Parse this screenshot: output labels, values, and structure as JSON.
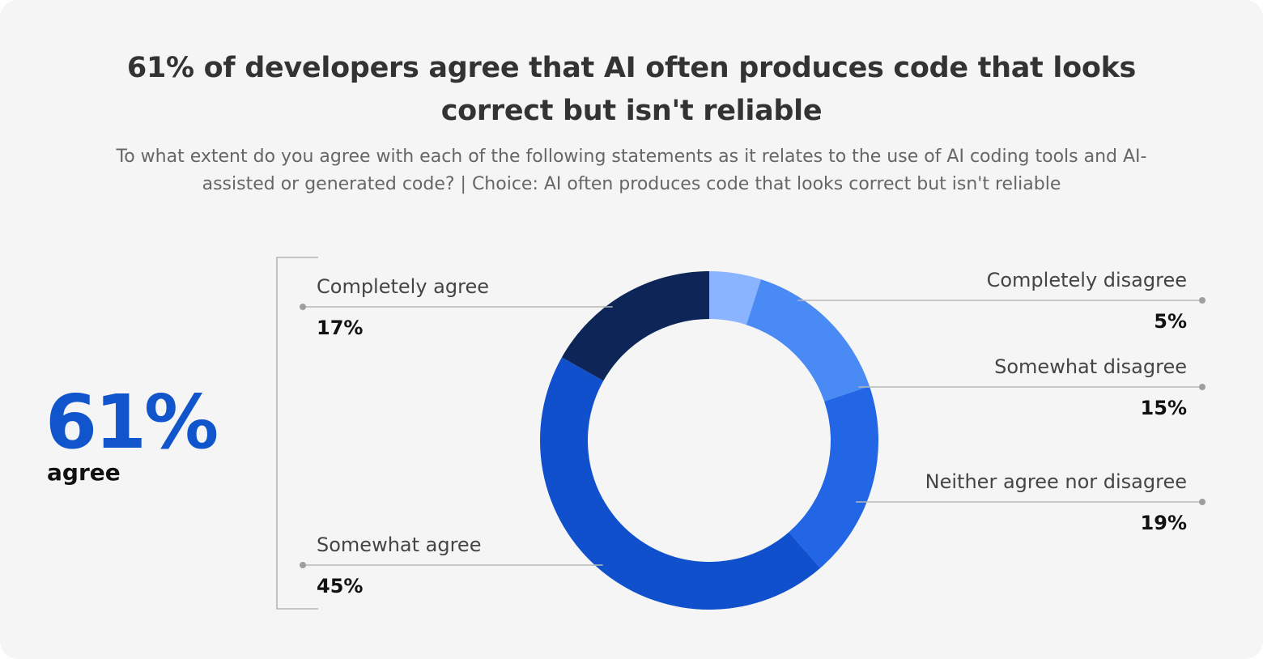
{
  "title": "61% of developers agree that AI often produces code that looks correct but isn't reliable",
  "subtitle": "To what extent do you agree with each of the following statements as it relates to the use of AI coding tools and AI-assisted or generated code? | Choice: AI often produces code that looks correct but isn't reliable",
  "summary": {
    "value": "61%",
    "label": "agree"
  },
  "chart_data": {
    "type": "pie",
    "style": "donut",
    "start": "top, clockwise",
    "categories": [
      "Completely disagree",
      "Somewhat disagree",
      "Neither agree nor disagree",
      "Somewhat agree",
      "Completely agree"
    ],
    "values": [
      5,
      15,
      19,
      45,
      17
    ],
    "value_labels": [
      "5%",
      "15%",
      "19%",
      "45%",
      "17%"
    ],
    "colors": [
      "#8ab4ff",
      "#4a8af4",
      "#2266e6",
      "#1150cc",
      "#0d2557"
    ],
    "label_sides": [
      "right",
      "right",
      "right",
      "left",
      "left"
    ],
    "grouping": "bracket around Somewhat agree and Completely agree"
  }
}
